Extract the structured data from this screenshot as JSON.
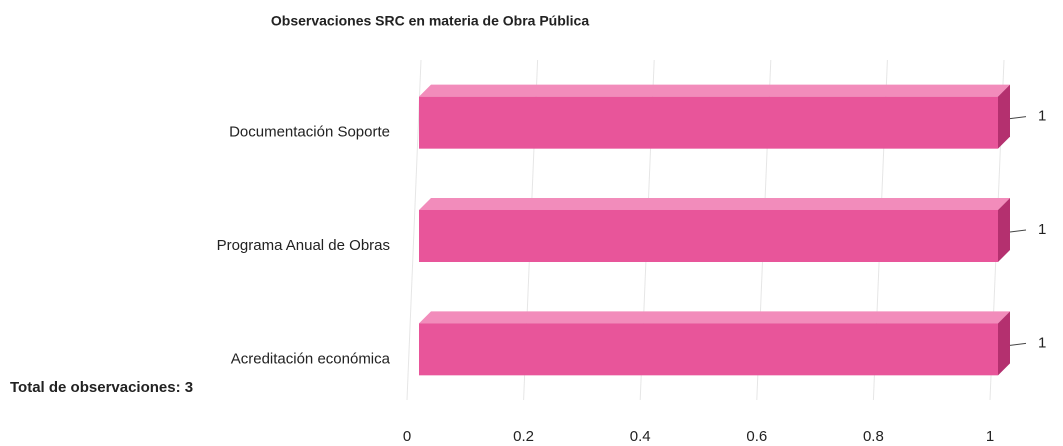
{
  "chart_data": {
    "type": "bar3d_horizontal",
    "title": "Observaciones SRC en materia de Obra Pública",
    "categories": [
      "Documentación Soporte",
      "Programa Anual de Obras",
      "Acreditación económica"
    ],
    "values": [
      1,
      1,
      1
    ],
    "color": "#e8559a",
    "xlim": [
      0,
      1
    ],
    "xticks": [
      0,
      0.2,
      0.4,
      0.6,
      0.8,
      1
    ],
    "grid": true,
    "annotation": "Total de observaciones: 3"
  }
}
